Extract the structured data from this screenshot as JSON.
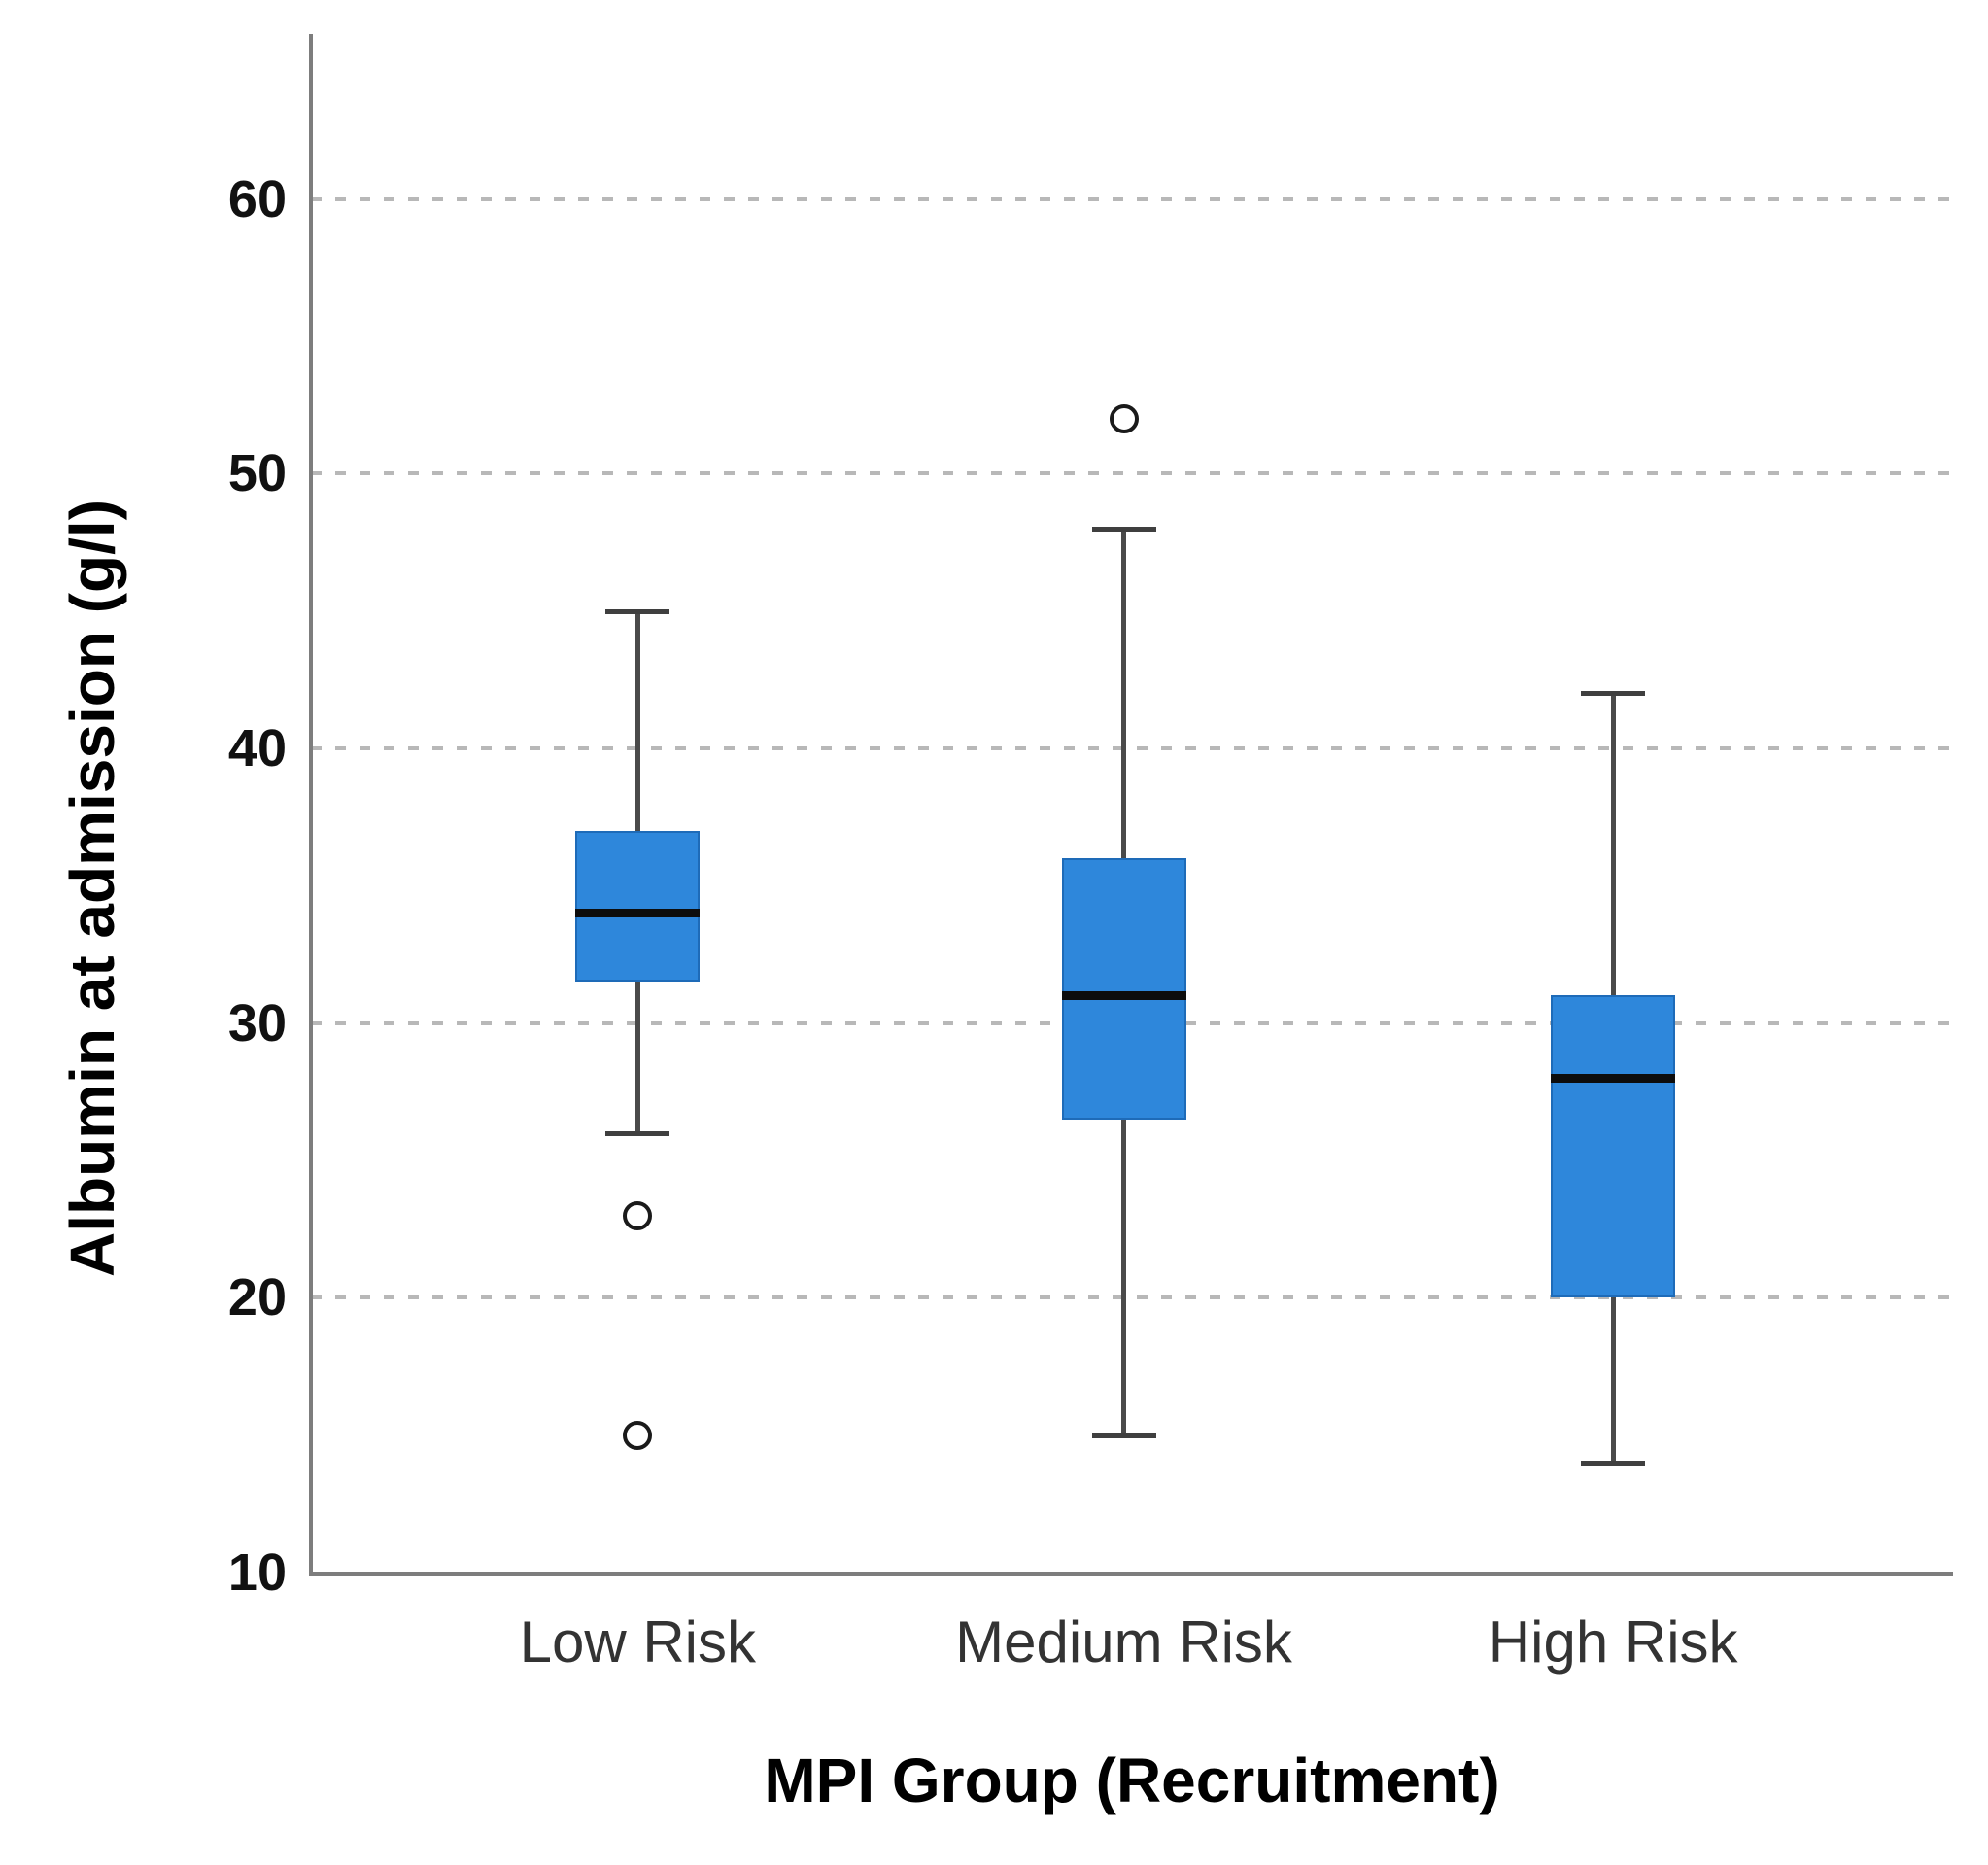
{
  "figure": {
    "background": "#ffffff"
  },
  "chart_data": {
    "type": "boxplot",
    "title": "",
    "xlabel": "MPI Group (Recruitment)",
    "ylabel": "Albumin at admission (g/l)",
    "categories": [
      "Low Risk",
      "Medium Risk",
      "High Risk"
    ],
    "ylim": [
      10,
      66
    ],
    "yticks": [
      10,
      20,
      30,
      40,
      50,
      60
    ],
    "grid_values": [
      20,
      30,
      40,
      50,
      60
    ],
    "grid": "horizontal-dashed",
    "legend": "none",
    "groups": [
      {
        "category": "Low Risk",
        "whisker_low": 26,
        "q1": 31.5,
        "median": 34,
        "q3": 37,
        "whisker_high": 45,
        "outliers": [
          23,
          15
        ]
      },
      {
        "category": "Medium Risk",
        "whisker_low": 15,
        "q1": 26.5,
        "median": 31,
        "q3": 36,
        "whisker_high": 48,
        "outliers": [
          52
        ]
      },
      {
        "category": "High Risk",
        "whisker_low": 14,
        "q1": 20,
        "median": 28,
        "q3": 31,
        "whisker_high": 42,
        "outliers": []
      }
    ],
    "colors": {
      "box_fill": "#2E87DB",
      "box_border": "#1E6BB8",
      "median": "#0d0d0d",
      "whisker": "#4a4a4a",
      "outlier_stroke": "#1a1a1a",
      "outlier_fill": "#ffffff",
      "gridline": "#b8b8b8",
      "axis_line": "#7d7d7d",
      "tick_label": "#111111",
      "category_label": "#333333",
      "title_color": "#000000"
    }
  }
}
